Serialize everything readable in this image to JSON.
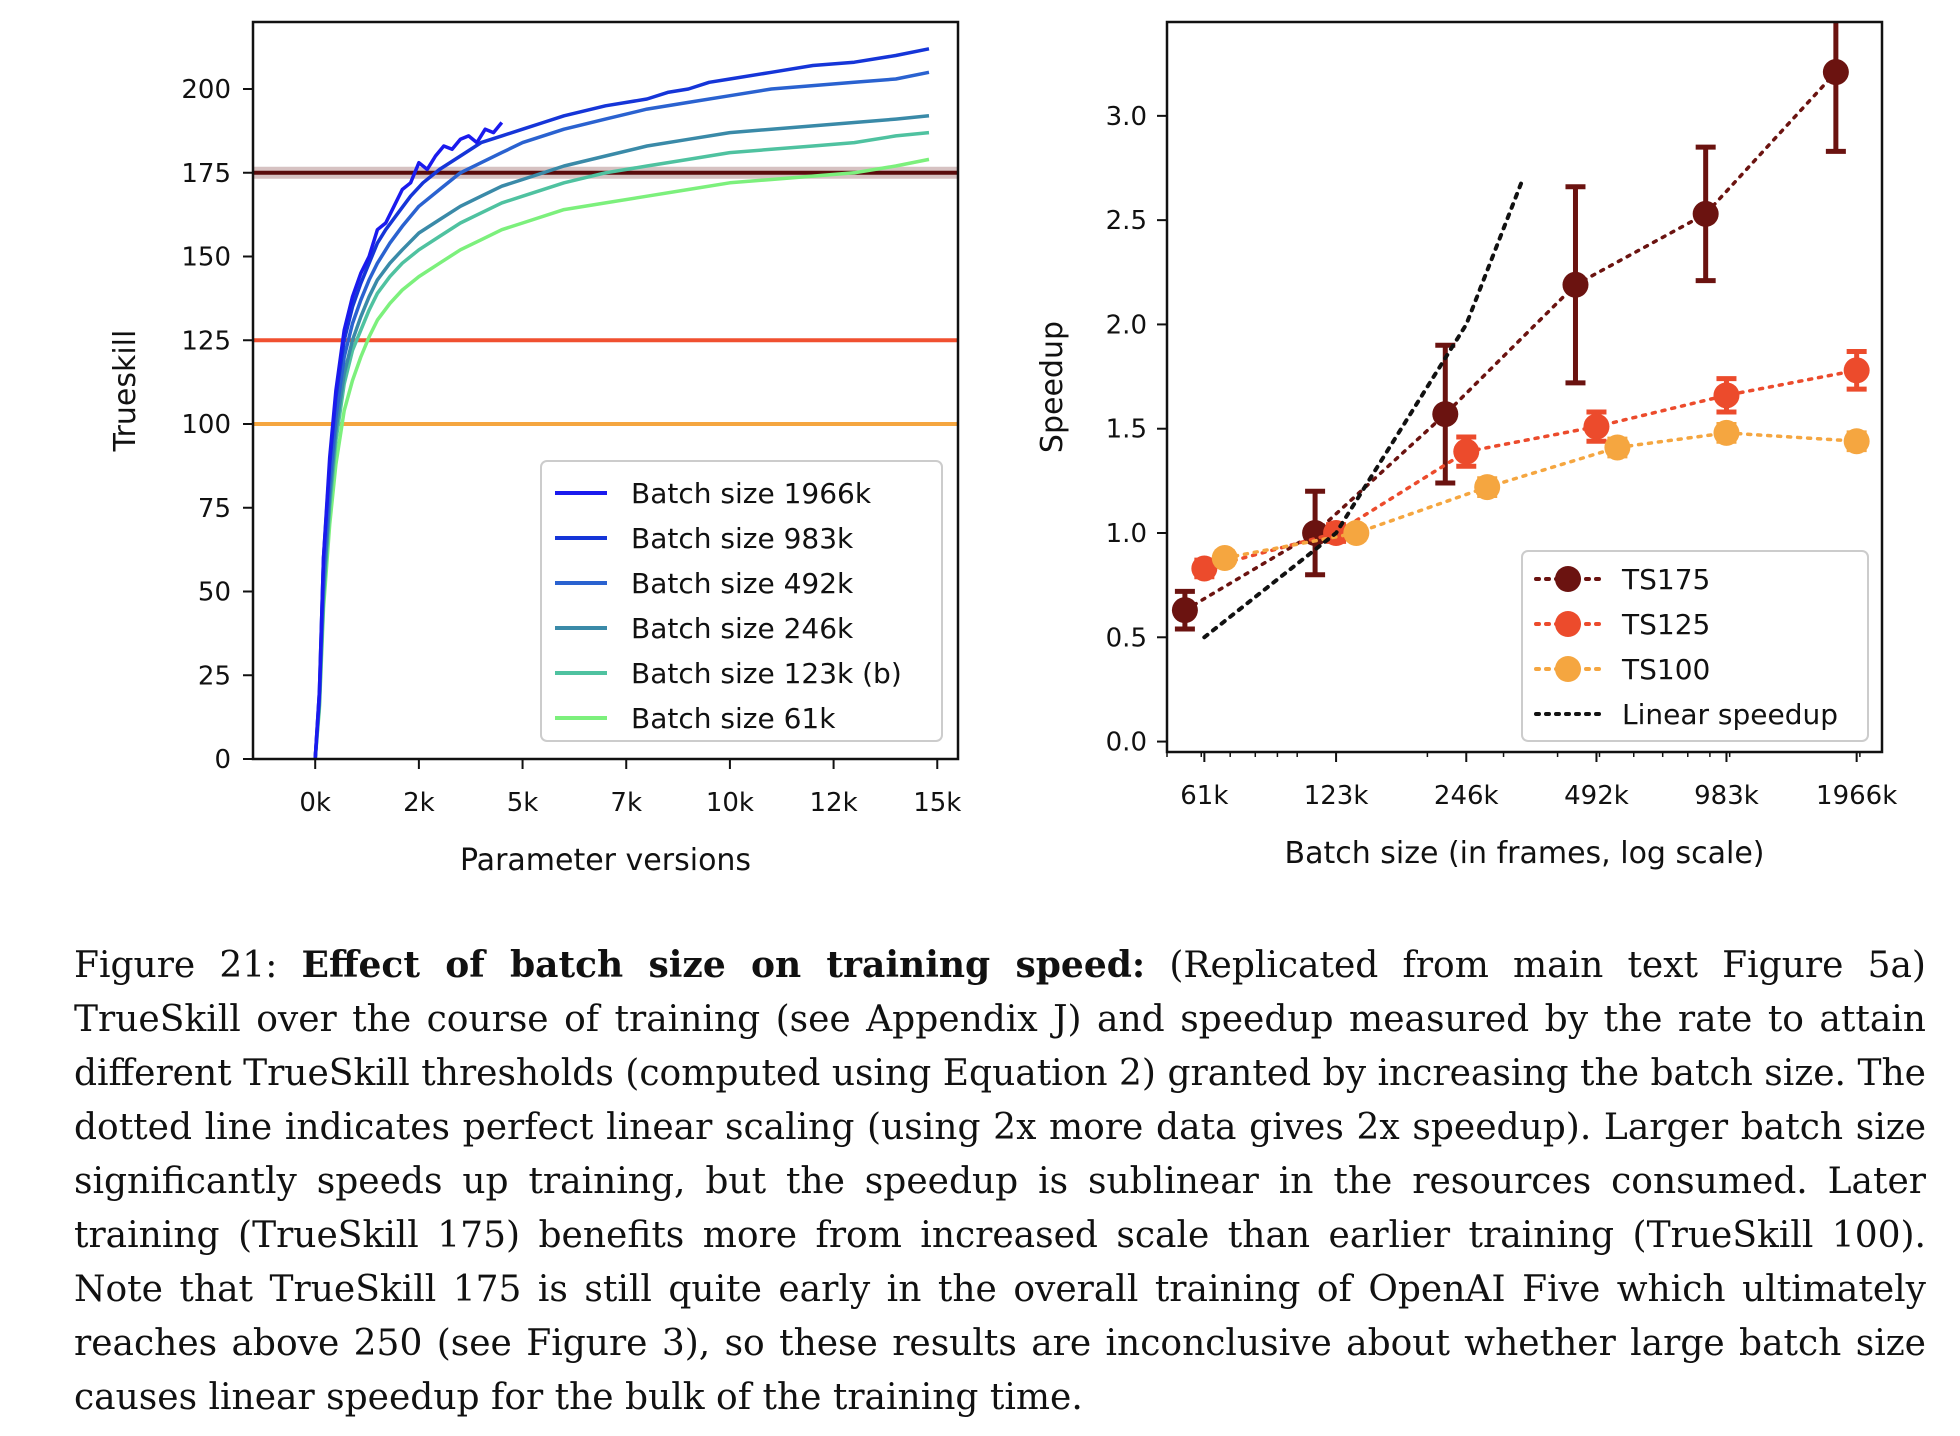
{
  "chart_data": [
    {
      "type": "line",
      "xlabel": "Parameter versions",
      "ylabel": "Trueskill",
      "xlim": [
        -1500,
        15500
      ],
      "ylim": [
        0,
        220
      ],
      "xticks": [
        0,
        2500,
        5000,
        7500,
        10000,
        12500,
        15000
      ],
      "xtick_labels": [
        "0k",
        "2k",
        "5k",
        "7k",
        "10k",
        "12k",
        "15k"
      ],
      "yticks": [
        0,
        25,
        50,
        75,
        100,
        125,
        150,
        175,
        200
      ],
      "ytick_labels": [
        "0",
        "25",
        "50",
        "75",
        "100",
        "125",
        "150",
        "175",
        "200"
      ],
      "hlines": [
        {
          "y": 175,
          "color": "#5a0d0d"
        },
        {
          "y": 125,
          "color": "#f05030"
        },
        {
          "y": 100,
          "color": "#f5a640"
        }
      ],
      "legend_position": "lower-right",
      "series": [
        {
          "name": "Batch size 1966k",
          "color": "#1a1aee",
          "x": [
            0,
            100,
            200,
            350,
            500,
            700,
            900,
            1100,
            1300,
            1500,
            1700,
            1900,
            2100,
            2300,
            2500,
            2700,
            2900,
            3100,
            3300,
            3500,
            3700,
            3900,
            4100,
            4300,
            4500
          ],
          "y": [
            0,
            20,
            60,
            90,
            110,
            128,
            138,
            145,
            150,
            158,
            160,
            165,
            170,
            172,
            178,
            176,
            180,
            183,
            182,
            185,
            186,
            184,
            188,
            187,
            190
          ]
        },
        {
          "name": "Batch size 983k",
          "color": "#1535d8",
          "x": [
            0,
            100,
            200,
            350,
            500,
            700,
            900,
            1100,
            1300,
            1500,
            1700,
            2000,
            2300,
            2600,
            3000,
            3500,
            4000,
            4500,
            5000,
            5500,
            6000,
            7000,
            8000,
            8500,
            9000,
            9500,
            10000,
            11000,
            12000,
            13000,
            14000,
            14800
          ],
          "y": [
            0,
            20,
            60,
            88,
            108,
            125,
            135,
            142,
            148,
            154,
            158,
            163,
            168,
            172,
            176,
            180,
            184,
            186,
            188,
            190,
            192,
            195,
            197,
            199,
            200,
            202,
            203,
            205,
            207,
            208,
            210,
            212
          ]
        },
        {
          "name": "Batch size 492k",
          "color": "#2a62d0",
          "x": [
            0,
            100,
            200,
            350,
            500,
            700,
            900,
            1100,
            1300,
            1500,
            1800,
            2100,
            2500,
            3000,
            3500,
            4000,
            4500,
            5000,
            6000,
            7000,
            8000,
            9000,
            10000,
            11000,
            12000,
            13000,
            14000,
            14800
          ],
          "y": [
            0,
            18,
            55,
            82,
            102,
            120,
            130,
            137,
            143,
            148,
            154,
            159,
            165,
            170,
            175,
            178,
            181,
            184,
            188,
            191,
            194,
            196,
            198,
            200,
            201,
            202,
            203,
            205
          ]
        },
        {
          "name": "Batch size 246k",
          "color": "#3a8aa8",
          "x": [
            0,
            100,
            200,
            350,
            500,
            700,
            900,
            1100,
            1300,
            1500,
            1800,
            2100,
            2500,
            3000,
            3500,
            4000,
            4500,
            5000,
            6000,
            7000,
            8000,
            9000,
            10000,
            11000,
            12000,
            13000,
            14000,
            14800
          ],
          "y": [
            0,
            17,
            50,
            78,
            98,
            115,
            125,
            132,
            138,
            143,
            148,
            152,
            157,
            161,
            165,
            168,
            171,
            173,
            177,
            180,
            183,
            185,
            187,
            188,
            189,
            190,
            191,
            192
          ]
        },
        {
          "name": "Batch size 123k (b)",
          "color": "#4fc2a0",
          "x": [
            0,
            100,
            200,
            350,
            500,
            700,
            900,
            1100,
            1300,
            1500,
            1800,
            2100,
            2500,
            3000,
            3500,
            4000,
            4500,
            5000,
            6000,
            7000,
            8000,
            9000,
            10000,
            11000,
            12000,
            13000,
            14000,
            14800
          ],
          "y": [
            0,
            16,
            48,
            75,
            95,
            112,
            122,
            128,
            134,
            139,
            144,
            148,
            152,
            156,
            160,
            163,
            166,
            168,
            172,
            175,
            177,
            179,
            181,
            182,
            183,
            184,
            186,
            187
          ]
        },
        {
          "name": "Batch size 61k",
          "color": "#7cf07c",
          "x": [
            0,
            100,
            200,
            350,
            500,
            700,
            900,
            1100,
            1300,
            1500,
            1800,
            2100,
            2500,
            3000,
            3500,
            4000,
            4500,
            5000,
            6000,
            7000,
            8000,
            9000,
            10000,
            11000,
            12000,
            13000,
            14000,
            14800
          ],
          "y": [
            0,
            15,
            45,
            70,
            88,
            104,
            113,
            120,
            126,
            131,
            136,
            140,
            144,
            148,
            152,
            155,
            158,
            160,
            164,
            166,
            168,
            170,
            172,
            173,
            174,
            175,
            177,
            179
          ]
        }
      ]
    },
    {
      "type": "scatter",
      "xlabel": "Batch size (in frames, log scale)",
      "ylabel": "Speedup",
      "xscale": "log",
      "xlim": [
        50,
        2250
      ],
      "ylim": [
        -0.05,
        3.45
      ],
      "xticks": [
        61,
        123,
        246,
        492,
        983,
        1966
      ],
      "xtick_labels": [
        "61k",
        "123k",
        "246k",
        "492k",
        "983k",
        "1966k"
      ],
      "yticks": [
        0.0,
        0.5,
        1.0,
        1.5,
        2.0,
        2.5,
        3.0
      ],
      "ytick_labels": [
        "0.0",
        "0.5",
        "1.0",
        "1.5",
        "2.0",
        "2.5",
        "3.0"
      ],
      "legend_position": "lower-right",
      "series": [
        {
          "name": "TS175",
          "color": "#6b1310",
          "x": [
            55,
            110,
            220,
            440,
            880,
            1760
          ],
          "y": [
            0.63,
            1.0,
            1.57,
            2.19,
            2.53,
            3.21
          ],
          "err": [
            0.09,
            0.2,
            0.33,
            0.47,
            0.32,
            0.38
          ]
        },
        {
          "name": "TS125",
          "color": "#ec4b2c",
          "x": [
            61,
            123,
            246,
            492,
            983,
            1966
          ],
          "y": [
            0.83,
            1.0,
            1.39,
            1.51,
            1.66,
            1.78
          ],
          "err": [
            0.04,
            0.04,
            0.07,
            0.07,
            0.08,
            0.09
          ]
        },
        {
          "name": "TS100",
          "color": "#f5a640",
          "x": [
            68,
            137,
            275,
            550,
            983,
            1966
          ],
          "y": [
            0.88,
            1.0,
            1.22,
            1.41,
            1.48,
            1.44
          ],
          "err": [
            0.03,
            0.03,
            0.04,
            0.04,
            0.04,
            0.04
          ]
        },
        {
          "name": "Linear speedup",
          "color": "#111111",
          "style": "dotted",
          "x": [
            61,
            123,
            246,
            330
          ],
          "y": [
            0.5,
            1.0,
            2.0,
            2.68
          ]
        }
      ]
    }
  ],
  "caption": {
    "lead": "Figure 21:",
    "bold": "Effect of batch size on training speed:",
    "text": "(Replicated from main text Figure 5a) TrueSkill over the course of training (see Appendix J) and speedup measured by the rate to attain different TrueSkill thresholds (computed using Equation 2) granted by increasing the batch size. The dotted line indicates perfect linear scaling (using 2x more data gives 2x speedup). Larger batch size significantly speeds up training, but the speedup is sublinear in the resources consumed. Later training (TrueSkill 175) benefits more from increased scale than earlier training (TrueSkill 100). Note that TrueSkill 175 is still quite early in the overall training of OpenAI Five which ultimately reaches above 250 (see Figure 3), so these results are inconclusive about whether large batch size causes linear speedup for the bulk of the training time."
  }
}
